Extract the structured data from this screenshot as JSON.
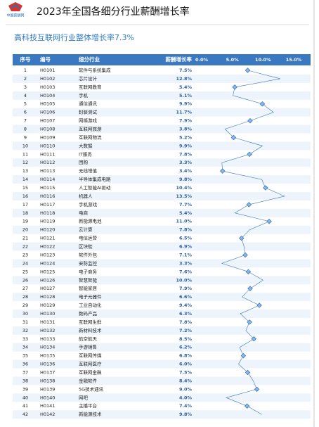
{
  "logo": "中国薪酬网",
  "title": "2023年全国各细分行业薪酬增长率",
  "subtitle": "高科技互联网行业整体增长率7.3%",
  "table": {
    "columns": [
      "序号",
      "编号",
      "细分行业",
      "薪酬增长率"
    ],
    "xlim": [
      0,
      15
    ],
    "xticks": [
      {
        "value": 0,
        "label": "0.0%"
      },
      {
        "value": 5,
        "label": "5.0%"
      },
      {
        "value": 10,
        "label": "10.0%"
      },
      {
        "value": 15,
        "label": "15.0%"
      }
    ],
    "color": "#3a78c2",
    "rows": [
      {
        "no": 1,
        "code": "H0101",
        "industry": "软件与系统集成",
        "rate": 7.5,
        "rate_label": "7.5%"
      },
      {
        "no": 2,
        "code": "H0102",
        "industry": "芯片设计",
        "rate": 12.8,
        "rate_label": "12.8%"
      },
      {
        "no": 3,
        "code": "H0103",
        "industry": "互联网教育",
        "rate": 5.4,
        "rate_label": "5.4%"
      },
      {
        "no": 4,
        "code": "H0104",
        "industry": "手机",
        "rate": 5.1,
        "rate_label": "5.1%"
      },
      {
        "no": 5,
        "code": "H0105",
        "industry": "通信通讯",
        "rate": 9.9,
        "rate_label": "9.9%"
      },
      {
        "no": 6,
        "code": "H0106",
        "industry": "封装测试",
        "rate": 11.7,
        "rate_label": "11.7%"
      },
      {
        "no": 7,
        "code": "H0107",
        "industry": "网络游戏",
        "rate": 7.9,
        "rate_label": "7.9%"
      },
      {
        "no": 8,
        "code": "H0108",
        "industry": "互联网旅游",
        "rate": 3.8,
        "rate_label": "3.8%"
      },
      {
        "no": 9,
        "code": "H0109",
        "industry": "互联网物流",
        "rate": 5.2,
        "rate_label": "5.2%"
      },
      {
        "no": 10,
        "code": "H0110",
        "industry": "大数据",
        "rate": 9.9,
        "rate_label": "9.9%"
      },
      {
        "no": 11,
        "code": "H0111",
        "industry": "IT服务",
        "rate": 7.8,
        "rate_label": "7.8%"
      },
      {
        "no": 12,
        "code": "H0112",
        "industry": "团购",
        "rate": 3.3,
        "rate_label": "3.3%"
      },
      {
        "no": 13,
        "code": "H0113",
        "industry": "无线增值",
        "rate": 3.4,
        "rate_label": "3.4%"
      },
      {
        "no": 14,
        "code": "H0114",
        "industry": "半导体集成电路",
        "rate": 9.8,
        "rate_label": "9.8%"
      },
      {
        "no": 15,
        "code": "H0115",
        "industry": "人工智能AI驱动",
        "rate": 10.4,
        "rate_label": "10.4%"
      },
      {
        "no": 16,
        "code": "H0116",
        "industry": "机器人",
        "rate": 13.5,
        "rate_label": "13.5%"
      },
      {
        "no": 17,
        "code": "H0117",
        "industry": "手机游戏",
        "rate": 7.7,
        "rate_label": "7.7%"
      },
      {
        "no": 18,
        "code": "H0118",
        "industry": "电商",
        "rate": 5.4,
        "rate_label": "5.4%"
      },
      {
        "no": 19,
        "code": "H0119",
        "industry": "新能源电池",
        "rate": 11.0,
        "rate_label": "11.0%"
      },
      {
        "no": 20,
        "code": "H0120",
        "industry": "云计算",
        "rate": 7.8,
        "rate_label": "7.8%"
      },
      {
        "no": 21,
        "code": "H0121",
        "industry": "电信运营",
        "rate": 6.5,
        "rate_label": "6.5%"
      },
      {
        "no": 22,
        "code": "H0122",
        "industry": "区块链",
        "rate": 6.9,
        "rate_label": "6.9%"
      },
      {
        "no": 23,
        "code": "H0123",
        "industry": "软件外包",
        "rate": 7.1,
        "rate_label": "7.1%"
      },
      {
        "no": 24,
        "code": "H0124",
        "industry": "安防监控",
        "rate": 3.3,
        "rate_label": "3.3%"
      },
      {
        "no": 25,
        "code": "H0125",
        "industry": "电子商务",
        "rate": 7.6,
        "rate_label": "7.6%"
      },
      {
        "no": 26,
        "code": "H0126",
        "industry": "智慧智能",
        "rate": 10.0,
        "rate_label": "10.0%"
      },
      {
        "no": 27,
        "code": "H0127",
        "industry": "智能家居",
        "rate": 7.9,
        "rate_label": "7.9%"
      },
      {
        "no": 28,
        "code": "H0128",
        "industry": "电子元器件",
        "rate": 6.6,
        "rate_label": "6.6%"
      },
      {
        "no": 29,
        "code": "H0129",
        "industry": "工业自动化",
        "rate": 9.4,
        "rate_label": "9.4%"
      },
      {
        "no": 30,
        "code": "H0130",
        "industry": "数码产品",
        "rate": 6.3,
        "rate_label": "6.3%"
      },
      {
        "no": 31,
        "code": "H0131",
        "industry": "互联网生鲜",
        "rate": 7.8,
        "rate_label": "7.8%"
      },
      {
        "no": 32,
        "code": "H0132",
        "industry": "新材料技术",
        "rate": 7.2,
        "rate_label": "7.2%"
      },
      {
        "no": 33,
        "code": "H0133",
        "industry": "航空航天",
        "rate": 8.5,
        "rate_label": "8.5%"
      },
      {
        "no": 34,
        "code": "H0134",
        "industry": "手游销售",
        "rate": 6.2,
        "rate_label": "6.2%"
      },
      {
        "no": 35,
        "code": "H0135",
        "industry": "互联网传媒",
        "rate": 6.8,
        "rate_label": "6.8%"
      },
      {
        "no": 36,
        "code": "H0136",
        "industry": "互联网医疗",
        "rate": 6.0,
        "rate_label": "6.0%"
      },
      {
        "no": 37,
        "code": "H0137",
        "industry": "互联网金融",
        "rate": 7.5,
        "rate_label": "7.5%"
      },
      {
        "no": 38,
        "code": "H0138",
        "industry": "金融软件",
        "rate": 8.4,
        "rate_label": "8.4%"
      },
      {
        "no": 39,
        "code": "H0139",
        "industry": "5G技术通讯",
        "rate": 9.0,
        "rate_label": "9.0%"
      },
      {
        "no": 40,
        "code": "H0140",
        "industry": "网吧",
        "rate": 4.0,
        "rate_label": "4.0%"
      },
      {
        "no": 41,
        "code": "H0141",
        "industry": "主播平台",
        "rate": 7.4,
        "rate_label": "7.4%"
      },
      {
        "no": 42,
        "code": "H0142",
        "industry": "新能源技术",
        "rate": 9.8,
        "rate_label": "9.8%"
      }
    ]
  }
}
